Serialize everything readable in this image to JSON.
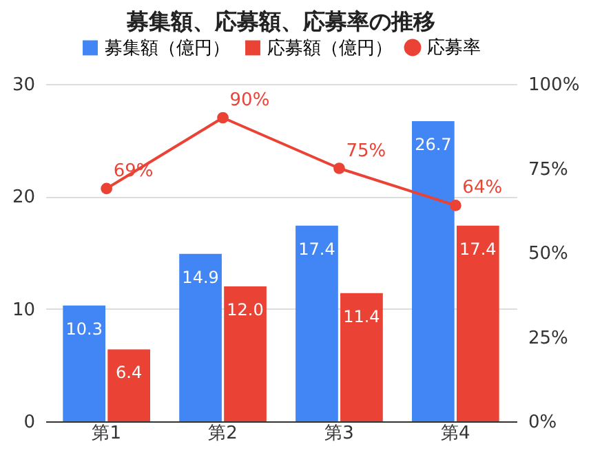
{
  "chart_data": {
    "type": "bar",
    "title": "募集額、応募額、応募率の推移",
    "categories": [
      "第1",
      "第2",
      "第3",
      "第4"
    ],
    "series": [
      {
        "name": "募集額（億円）",
        "color": "#4285f4",
        "values": [
          10.3,
          14.9,
          17.4,
          26.7
        ],
        "value_labels": [
          "10.3",
          "14.9",
          "17.4",
          "26.7"
        ]
      },
      {
        "name": "応募額（億円）",
        "color": "#ea4335",
        "values": [
          6.4,
          12.0,
          11.4,
          17.4
        ],
        "value_labels": [
          "6.4",
          "12.0",
          "11.4",
          "17.4"
        ]
      },
      {
        "name": "応募率",
        "type": "line",
        "axis": "y2",
        "color": "#ea4335",
        "values": [
          69,
          90,
          75,
          64
        ],
        "value_labels": [
          "69%",
          "90%",
          "75%",
          "64%"
        ]
      }
    ],
    "ylim": [
      0,
      30
    ],
    "yticks": [
      0,
      10,
      20,
      30
    ],
    "y2lim": [
      0,
      100
    ],
    "y2ticks": [
      {
        "value": 0,
        "label": "0%"
      },
      {
        "value": 25,
        "label": "25%"
      },
      {
        "value": 50,
        "label": "50%"
      },
      {
        "value": 75,
        "label": "75%"
      },
      {
        "value": 100,
        "label": "100%"
      }
    ],
    "grid": "y",
    "legend": "top",
    "marker": "circle"
  }
}
